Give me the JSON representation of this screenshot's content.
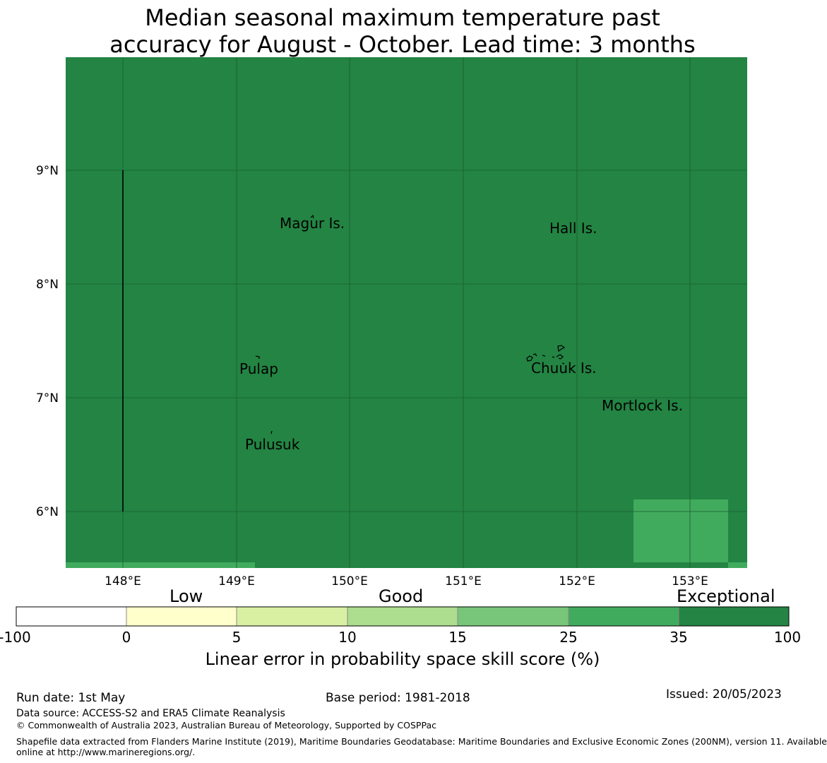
{
  "title": {
    "line1": "Median seasonal maximum temperature past",
    "line2": "accuracy for August - October. Lead time: 3 months"
  },
  "map": {
    "lon_range": [
      147.5,
      153.5
    ],
    "lat_range": [
      5.5,
      10.0
    ],
    "background_color": "#238443",
    "lon_ticks": [
      "148°E",
      "149°E",
      "150°E",
      "151°E",
      "152°E",
      "153°E"
    ],
    "lat_ticks": [
      "9°N",
      "8°N",
      "7°N",
      "6°N"
    ],
    "places": [
      {
        "name": "Magur Is.",
        "lon": 149.68,
        "lat": 8.5
      },
      {
        "name": "Hall Is.",
        "lon": 151.97,
        "lat": 8.46
      },
      {
        "name": "Pulap",
        "lon": 149.2,
        "lat": 7.22
      },
      {
        "name": "Chuuk Is.",
        "lon": 151.9,
        "lat": 7.23
      },
      {
        "name": "Mortlock Is.",
        "lon": 152.6,
        "lat": 6.9
      },
      {
        "name": "Pulusuk",
        "lon": 149.33,
        "lat": 6.56
      }
    ]
  },
  "legend": {
    "categories": [
      "Low",
      "Good",
      "Exceptional"
    ],
    "ticks": [
      "-100",
      "0",
      "5",
      "10",
      "15",
      "25",
      "35",
      "100"
    ],
    "colors": [
      "#ffffff",
      "#ffffcc",
      "#d9f0a3",
      "#addd8e",
      "#78c679",
      "#41ab5d",
      "#238443"
    ],
    "title": "Linear error in probability space skill score (%)"
  },
  "footer": {
    "run_date": "Run date: 1st May",
    "base_period": "Base period: 1981-2018",
    "issued": "Issued: 20/05/2023",
    "data_source": "Data source: ACCESS-S2 and ERA5 Climate Reanalysis",
    "copyright": "© Commonwealth of Australia 2023, Australian Bureau of Meteorology, Supported by COSPPac",
    "shapefile_line1": "Shapefile data extracted from Flanders Marine Institute (2019), Maritime Boundaries Geodatabase: Maritime Boundaries and Exclusive Economic Zones (200NM), version 11. Available",
    "shapefile_line2": "online at http://www.marineregions.org/."
  }
}
